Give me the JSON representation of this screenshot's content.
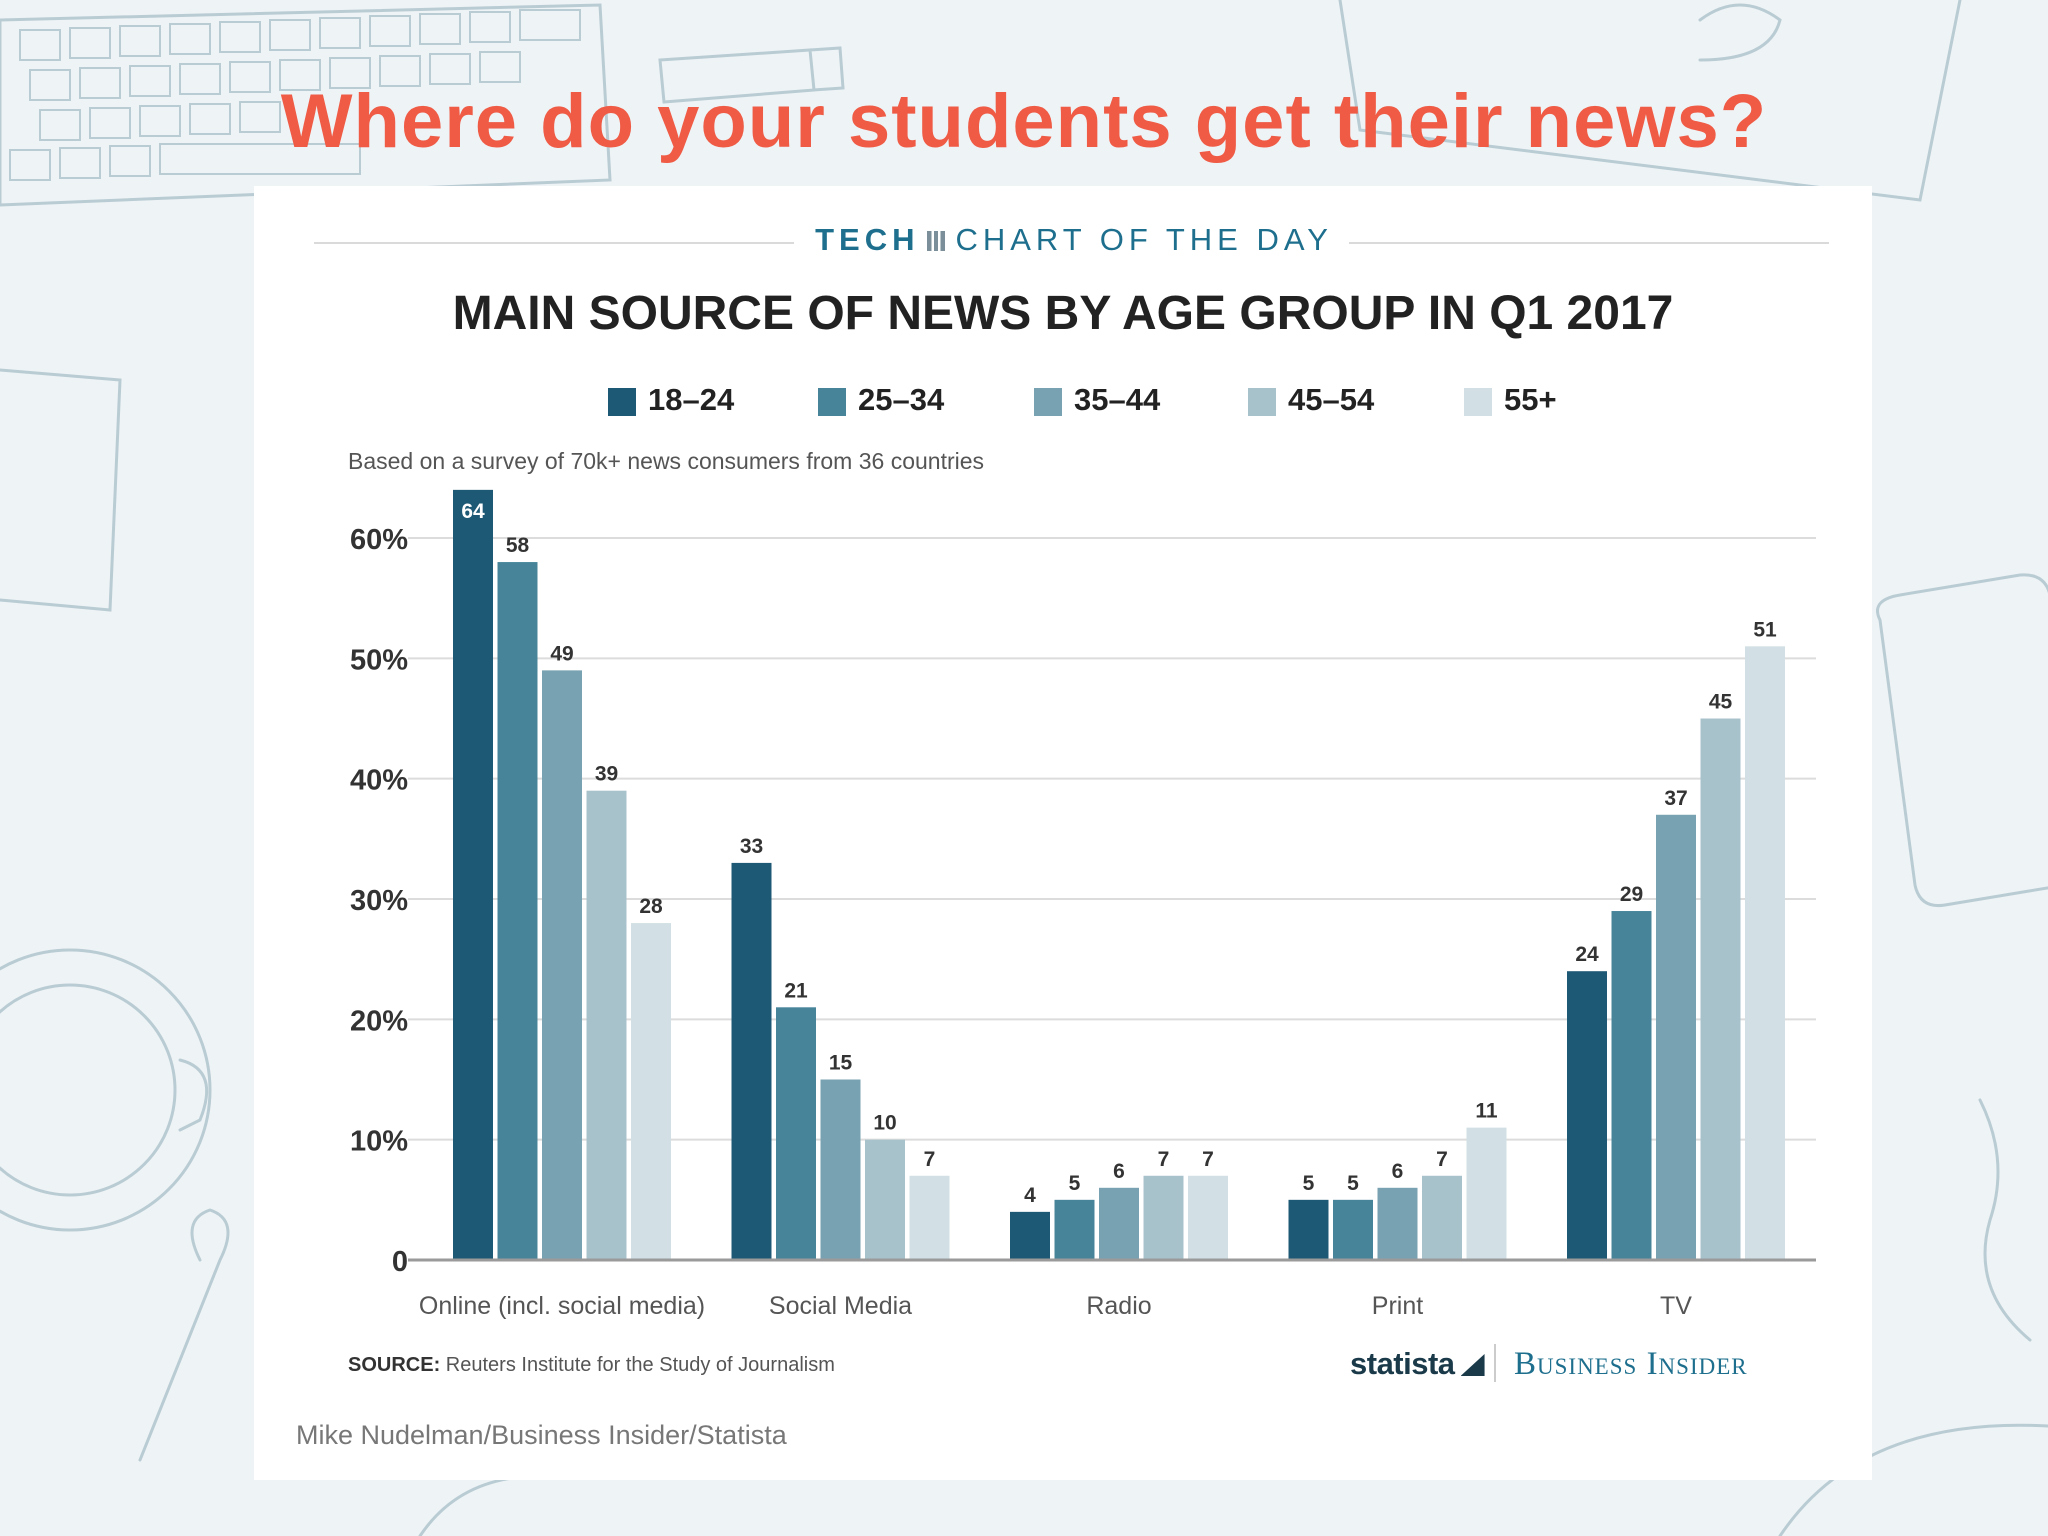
{
  "slide": {
    "title": "Where do your students get their news?"
  },
  "header": {
    "kicker_bold": "TECH",
    "kicker_rest": "CHART OF THE DAY"
  },
  "chart_data": {
    "type": "bar",
    "title": "MAIN SOURCE OF NEWS BY AGE GROUP IN Q1 2017",
    "subtitle": "Based on a survey of 70k+ news consumers from 36 countries",
    "categories": [
      "Online (incl. social media)",
      "Social Media",
      "Radio",
      "Print",
      "TV"
    ],
    "series": [
      {
        "name": "18–24",
        "color": "#1d5874",
        "values": [
          64,
          33,
          4,
          5,
          24
        ]
      },
      {
        "name": "25–34",
        "color": "#47849a",
        "values": [
          58,
          21,
          5,
          5,
          29
        ]
      },
      {
        "name": "35–44",
        "color": "#78a2b1",
        "values": [
          49,
          15,
          6,
          6,
          37
        ]
      },
      {
        "name": "45–54",
        "color": "#a8c2cc",
        "values": [
          39,
          10,
          7,
          7,
          45
        ]
      },
      {
        "name": "55+",
        "color": "#d2e0e5",
        "values": [
          28,
          7,
          7,
          11,
          51
        ]
      }
    ],
    "ylim": [
      0,
      60
    ],
    "yticks": [
      {
        "value": 0,
        "label": "0"
      },
      {
        "value": 10,
        "label": "10%"
      },
      {
        "value": 20,
        "label": "20%"
      },
      {
        "value": 30,
        "label": "30%"
      },
      {
        "value": 40,
        "label": "40%"
      },
      {
        "value": 50,
        "label": "50%"
      },
      {
        "value": 60,
        "label": "60%"
      }
    ],
    "grid": true,
    "legend_position": "top"
  },
  "footer": {
    "source_label": "SOURCE:",
    "source_text": "Reuters Institute for the Study of Journalism",
    "brand_statista": "statista",
    "brand_bi": "Business Insider",
    "credit": "Mike Nudelman/Business Insider/Statista"
  }
}
